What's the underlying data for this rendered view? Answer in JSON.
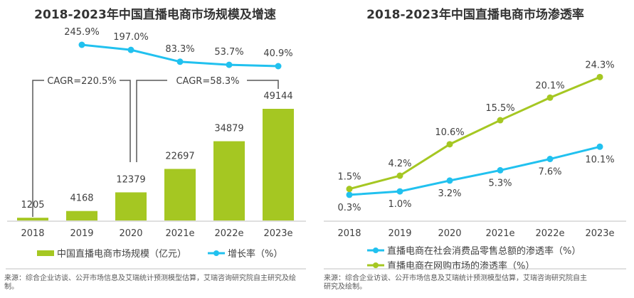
{
  "chart_data": [
    {
      "type": "bar+line",
      "title": "2018-2023年中国直播电商市场规模及增速",
      "categories": [
        "2018",
        "2019",
        "2020",
        "2021e",
        "2022e",
        "2023e"
      ],
      "series": [
        {
          "name": "中国直播电商市场规模（亿元）",
          "type": "bar",
          "color": "#a5c722",
          "values": [
            1205,
            4168,
            12379,
            22697,
            34879,
            49144
          ]
        },
        {
          "name": "增长率（%）",
          "type": "line",
          "color": "#21c1ef",
          "values": [
            null,
            245.9,
            197.0,
            83.3,
            53.7,
            40.9
          ],
          "labels": [
            "",
            "245.9%",
            "197.0%",
            "83.3%",
            "53.7%",
            "40.9%"
          ]
        }
      ],
      "annotations": [
        "CAGR=220.5%",
        "CAGR=58.3%"
      ],
      "legend": "bottom"
    },
    {
      "type": "line",
      "title": "2018-2023年中国直播电商市场渗透率",
      "categories": [
        "2018",
        "2019",
        "2020",
        "2021e",
        "2022e",
        "2023e"
      ],
      "series": [
        {
          "name": "直播电商在社会消费品零售总额的渗透率（%）",
          "color": "#21c1ef",
          "values": [
            0.3,
            1.0,
            3.2,
            5.3,
            7.6,
            10.1
          ],
          "labels": [
            "0.3%",
            "1.0%",
            "3.2%",
            "5.3%",
            "7.6%",
            "10.1%"
          ]
        },
        {
          "name": "直播电商在网购市场的渗透率（%）",
          "color": "#a5c722",
          "values": [
            1.5,
            4.2,
            10.6,
            15.5,
            20.1,
            24.3
          ],
          "labels": [
            "1.5%",
            "4.2%",
            "10.6%",
            "15.5%",
            "20.1%",
            "24.3%"
          ]
        }
      ],
      "legend": "bottom"
    }
  ],
  "source_left": "来源：综合企业访谈、公开市场信息及艾瑞统计预测模型估算，艾瑞咨询研究院自主研究及绘制。",
  "source_right": "来源：综合企业访谈、公开市场信息及艾瑞统计预测模型估算，艾瑞咨询研究院自主研究及绘制。"
}
